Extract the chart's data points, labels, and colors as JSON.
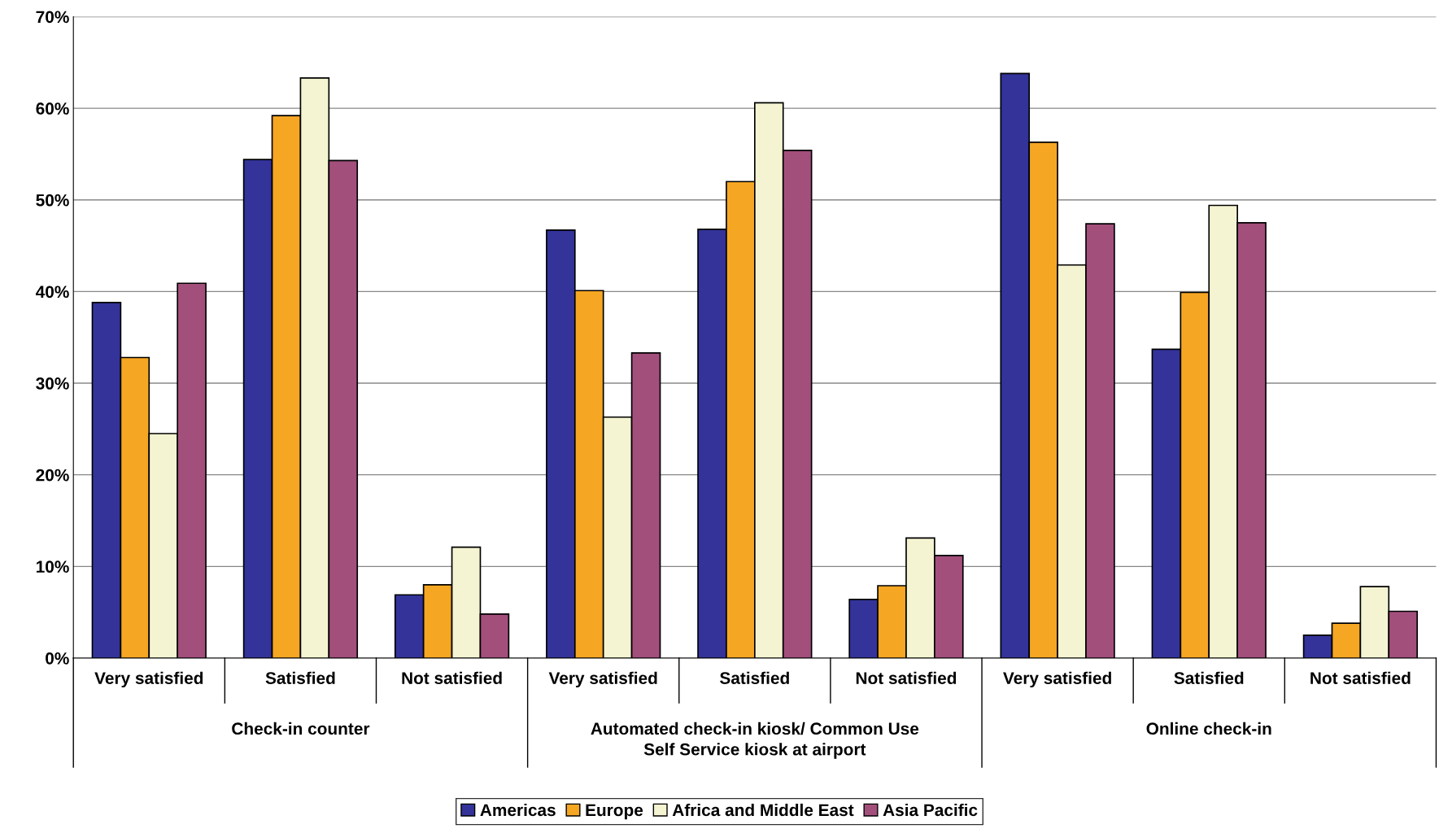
{
  "chart_data": {
    "type": "bar",
    "categories": [
      "Very satisfied",
      "Satisfied",
      "Not satisfied",
      "Very satisfied",
      "Satisfied",
      "Not satisfied",
      "Very satisfied",
      "Satisfied",
      "Not satisfied"
    ],
    "series": [
      {
        "name": "Americas",
        "color": "#33339a",
        "values": [
          38.8,
          54.4,
          6.9,
          46.7,
          46.8,
          6.4,
          63.8,
          33.7,
          2.5
        ]
      },
      {
        "name": "Europe",
        "color": "#f5a623",
        "values": [
          32.8,
          59.2,
          8.0,
          40.1,
          52.0,
          7.9,
          56.3,
          39.9,
          3.8
        ]
      },
      {
        "name": "Africa and Middle East",
        "color": "#f4f4d2",
        "values": [
          24.5,
          63.3,
          12.1,
          26.3,
          60.6,
          13.1,
          42.9,
          49.4,
          7.8
        ]
      },
      {
        "name": "Asia Pacific",
        "color": "#a34f7c",
        "values": [
          40.9,
          54.3,
          4.8,
          33.3,
          55.4,
          11.2,
          47.4,
          47.5,
          5.1
        ]
      }
    ],
    "annotations": [
      "Check-in counter",
      "Automated check-in kiosk/ Common Use\nSelf Service kiosk at airport",
      "Online check-in"
    ],
    "ylim": [
      0,
      70
    ],
    "yticks": [
      {
        "value": 0,
        "label": "0%"
      },
      {
        "value": 10,
        "label": "10%"
      },
      {
        "value": 20,
        "label": "20%"
      },
      {
        "value": 30,
        "label": "30%"
      },
      {
        "value": 40,
        "label": "40%"
      },
      {
        "value": 50,
        "label": "50%"
      },
      {
        "value": 60,
        "label": "60%"
      },
      {
        "value": 70,
        "label": "70%"
      }
    ],
    "grid": "y",
    "legend": "bottom"
  }
}
